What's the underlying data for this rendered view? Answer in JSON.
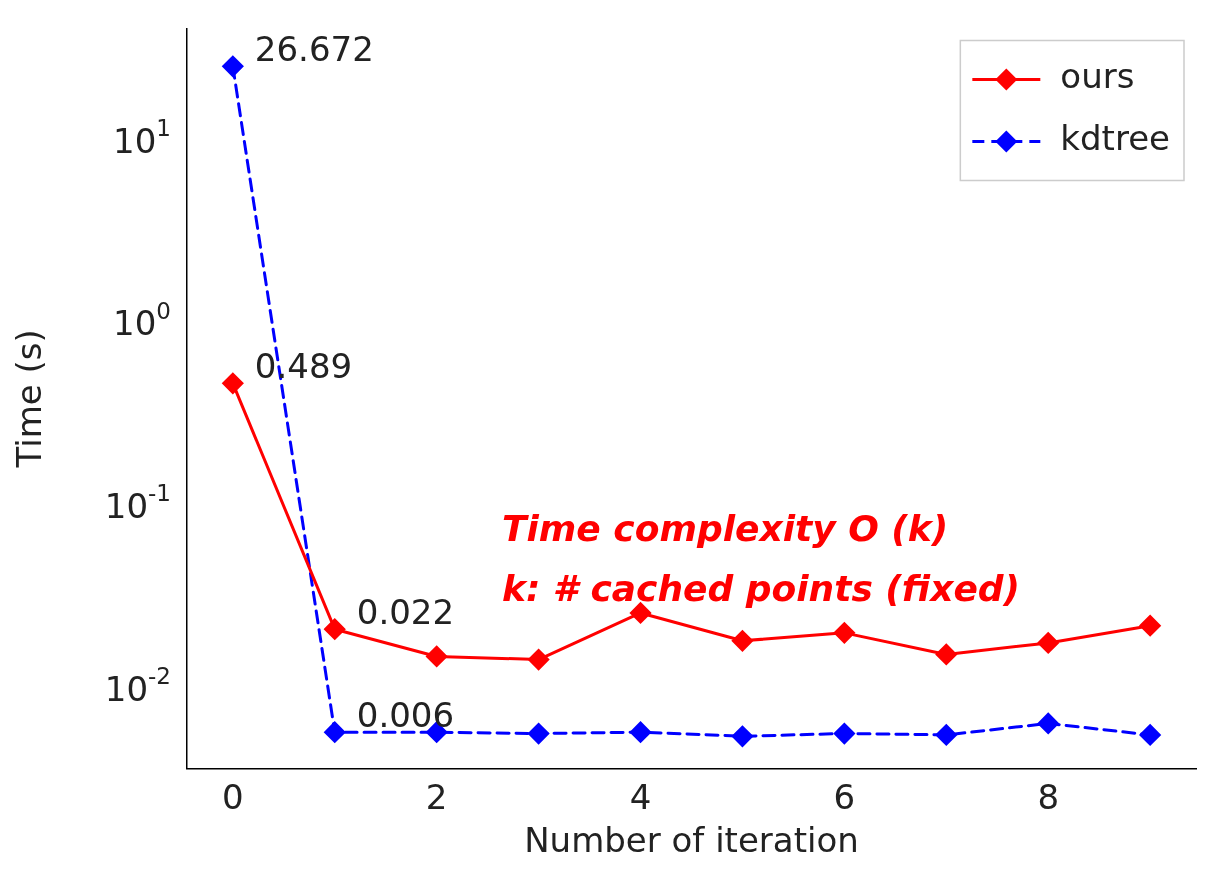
{
  "chart_data": {
    "type": "line",
    "xlabel": "Number of iteration",
    "ylabel": "Time (s)",
    "x": [
      0,
      1,
      2,
      3,
      4,
      5,
      6,
      7,
      8,
      9
    ],
    "series": [
      {
        "name": "ours",
        "color": "#ff0000",
        "line_style": "solid",
        "values": [
          0.489,
          0.022,
          0.0156,
          0.015,
          0.027,
          0.019,
          0.021,
          0.016,
          0.0185,
          0.023
        ],
        "value_labels": [
          "0.489",
          "0.022",
          null,
          null,
          null,
          null,
          null,
          null,
          null,
          null
        ]
      },
      {
        "name": "kdtree",
        "color": "#0000ff",
        "line_style": "dashed",
        "values": [
          26.672,
          0.006,
          0.006,
          0.0059,
          0.006,
          0.0057,
          0.0059,
          0.0058,
          0.0067,
          0.0058
        ],
        "value_labels": [
          "26.672",
          "0.006",
          null,
          null,
          null,
          null,
          null,
          null,
          null,
          null
        ]
      }
    ],
    "xlim": [
      -0.45,
      9.45
    ],
    "xticks": [
      0,
      2,
      4,
      6,
      8
    ],
    "ylim": [
      0.0038,
      43
    ],
    "yticks": [
      {
        "value": 0.01,
        "label": "10$^{-2}$"
      },
      {
        "value": 0.1,
        "label": "10$^{-1}$"
      },
      {
        "value": 1,
        "label": "10$^{0}$"
      },
      {
        "value": 10,
        "label": "10$^{1}$"
      }
    ],
    "log": "y",
    "grid": false,
    "legend": "top right",
    "marker": "diamond",
    "annotations": [
      "Time complexity O (k)",
      "k: # cached points (fixed)"
    ]
  }
}
